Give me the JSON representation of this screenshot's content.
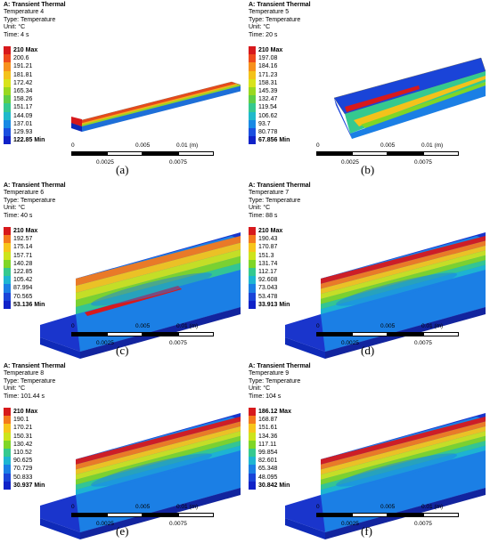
{
  "panels": [
    {
      "id": "a",
      "title": "A: Transient Thermal",
      "name": "Temperature 4",
      "type": "Type: Temperature",
      "unit": "Unit: °C",
      "time": "Time: 4 s",
      "legend": [
        "210 Max",
        "200.6",
        "191.21",
        "181.81",
        "172.42",
        "165.34",
        "158.26",
        "151.17",
        "144.09",
        "137.01",
        "129.93",
        "122.85 Min"
      ],
      "caption": "(a)"
    },
    {
      "id": "b",
      "title": "A: Transient Thermal",
      "name": "Temperature 5",
      "type": "Type: Temperature",
      "unit": "Unit: °C",
      "time": "Time: 20 s",
      "legend": [
        "210 Max",
        "197.08",
        "184.16",
        "171.23",
        "158.31",
        "145.39",
        "132.47",
        "119.54",
        "106.62",
        "93.7",
        "80.778",
        "67.856 Min"
      ],
      "caption": "(b)"
    },
    {
      "id": "c",
      "title": "A: Transient Thermal",
      "name": "Temperature 6",
      "type": "Type: Temperature",
      "unit": "Unit: °C",
      "time": "Time: 40 s",
      "legend": [
        "210 Max",
        "192.57",
        "175.14",
        "157.71",
        "140.28",
        "122.85",
        "105.42",
        "87.994",
        "70.565",
        "53.136 Min"
      ],
      "caption": "(c)"
    },
    {
      "id": "d",
      "title": "A: Transient Thermal",
      "name": "Temperature 7",
      "type": "Type: Temperature",
      "unit": "Unit: °C",
      "time": "Time: 88 s",
      "legend": [
        "210 Max",
        "190.43",
        "170.87",
        "151.3",
        "131.74",
        "112.17",
        "92.608",
        "73.043",
        "53.478",
        "33.913 Min"
      ],
      "caption": "(d)"
    },
    {
      "id": "e",
      "title": "A: Transient Thermal",
      "name": "Temperature 8",
      "type": "Type: Temperature",
      "unit": "Unit: °C",
      "time": "Time: 101.44 s",
      "legend": [
        "210 Max",
        "190.1",
        "170.21",
        "150.31",
        "130.42",
        "110.52",
        "90.625",
        "70.729",
        "50.833",
        "30.937 Min"
      ],
      "caption": "(e)"
    },
    {
      "id": "f",
      "title": "A: Transient Thermal",
      "name": "Temperature 9",
      "type": "Type: Temperature",
      "unit": "Unit: °C",
      "time": "Time: 104 s",
      "legend": [
        "186.12 Max",
        "168.87",
        "151.61",
        "134.36",
        "117.11",
        "99.854",
        "82.601",
        "65.348",
        "48.095",
        "30.842 Min"
      ],
      "caption": "(f)"
    }
  ],
  "scale": {
    "t0": "0",
    "t1": "0.005",
    "t2": "0.01 (m)",
    "b1": "0.0025",
    "b2": "0.0075"
  },
  "colors12": [
    "#d7191c",
    "#ef4a1c",
    "#f7911d",
    "#f3c21b",
    "#d8e31b",
    "#9ad81f",
    "#5fce47",
    "#35c98f",
    "#1fb9cb",
    "#1889e4",
    "#1b4fe0",
    "#1022c8"
  ],
  "colors10": [
    "#d7191c",
    "#f47a1d",
    "#f7c51b",
    "#cde41c",
    "#7fd627",
    "#35c98f",
    "#1eb6d2",
    "#1b7fe5",
    "#1a44d8",
    "#1022c8"
  ]
}
